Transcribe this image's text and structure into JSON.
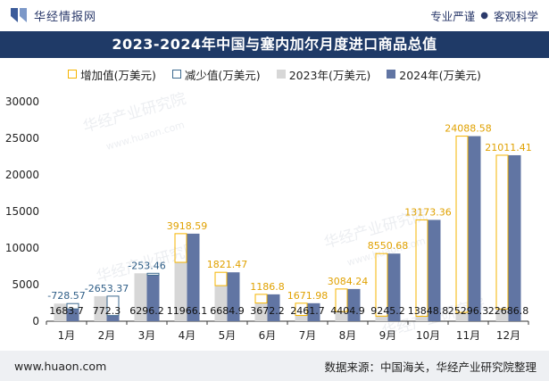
{
  "header": {
    "brand_name": "华经情报网",
    "tag_left": "专业严谨",
    "tag_sep": "●",
    "tag_right": "客观科学"
  },
  "title": "2023-2024年中国与塞内加尔月度进口商品总值",
  "legend": {
    "increase": "增加值(万美元)",
    "decrease": "减少值(万美元)",
    "y2023": "2023年(万美元)",
    "y2024": "2024年(万美元)"
  },
  "watermark": {
    "cn": "华经产业研究院",
    "url": "www.huaon.com"
  },
  "colors": {
    "bar2023": "#d7d7d7",
    "bar2024": "#6175a3",
    "increase": "#f5b400",
    "decrease": "#3d6a8f",
    "title_bg": "#1f3a67"
  },
  "chart_data": {
    "type": "bar",
    "categories": [
      "1月",
      "2月",
      "3月",
      "4月",
      "5月",
      "6月",
      "7月",
      "8月",
      "9月",
      "10月",
      "11月",
      "12月"
    ],
    "series": [
      {
        "name": "2023年(万美元)",
        "values": [
          2412.3,
          3425.67,
          6549.66,
          8047.51,
          4863.43,
          2485.4,
          789.72,
          1320.66,
          694.52,
          675.44,
          1207.74,
          1675.39
        ]
      },
      {
        "name": "2024年(万美元)",
        "values": [
          1683.7,
          772.3,
          6296.2,
          11966.1,
          6684.9,
          3672.2,
          2461.7,
          4404.9,
          9245.2,
          13848.8,
          25296.3,
          22686.8
        ]
      }
    ],
    "changes": [
      {
        "type": "decrease",
        "label": "-728.57"
      },
      {
        "type": "decrease",
        "label": "-2653.37"
      },
      {
        "type": "decrease",
        "label": "-253.46"
      },
      {
        "type": "increase",
        "label": "3918.59"
      },
      {
        "type": "increase",
        "label": "1821.47"
      },
      {
        "type": "increase",
        "label": "1186.8"
      },
      {
        "type": "increase",
        "label": "1671.98"
      },
      {
        "type": "increase",
        "label": "3084.24"
      },
      {
        "type": "increase",
        "label": "8550.68"
      },
      {
        "type": "increase",
        "label": "13173.36"
      },
      {
        "type": "increase",
        "label": "24088.58"
      },
      {
        "type": "increase",
        "label": "21011.41"
      }
    ],
    "value_labels_2024": [
      "1683.7",
      "772.3",
      "6296.2",
      "11966.1",
      "6684.9",
      "3672.2",
      "2461.7",
      "4404.9",
      "9245.2",
      "13848.8",
      "25296.3",
      "22686.8"
    ],
    "y_ticks": [
      "0",
      "5000",
      "10000",
      "15000",
      "20000",
      "25000",
      "30000"
    ],
    "ylim": [
      0,
      30000
    ],
    "grid": false,
    "legend_position": "top"
  },
  "footer": {
    "url": "www.huaon.com",
    "source": "数据来源：中国海关，华经产业研究院整理"
  }
}
